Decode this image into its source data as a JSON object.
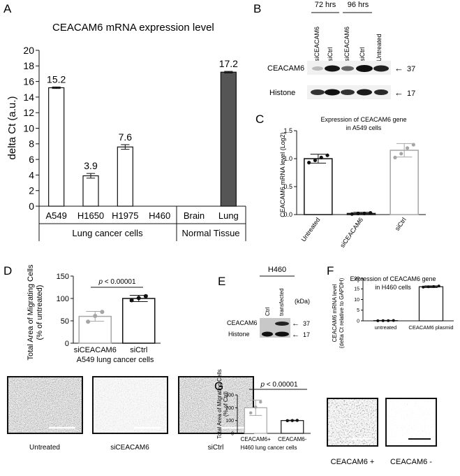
{
  "panels": {
    "A": {
      "letter": "A",
      "title": "CEACAM6 mRNA expression level",
      "ylabel": "delta Ct (a.u.)",
      "group_labels": [
        "Lung cancer cells",
        "Normal Tissue"
      ]
    },
    "B": {
      "letter": "B",
      "time_labels": [
        "72 hrs",
        "96 hrs"
      ],
      "lane_labels": [
        "siCEACAM6",
        "siCtrl",
        "siCEACAM6",
        "siCtrl",
        "Untreated"
      ],
      "row_labels": [
        "CEACAM6",
        "Histone"
      ],
      "kda_labels": [
        "37",
        "17"
      ]
    },
    "C": {
      "letter": "C",
      "title_line1": "Expression of CEACAM6 gene",
      "title_line2": "in A549 cells",
      "ylabel": "CEACAM6 mRNA level (Log2)"
    },
    "D": {
      "letter": "D",
      "ylabel_line1": "Total Area of Migrating Cells",
      "ylabel_line2": "(% of untreated)",
      "pvalue_p": "p",
      "pvalue_rest": " < 0.00001",
      "caption": "A549 lung cancer cells",
      "image_labels": [
        "Untreated",
        "siCEACAM6",
        "siCtrl"
      ]
    },
    "E": {
      "letter": "E",
      "cell_line": "H460",
      "lane_labels": [
        "Ctrl",
        "transfected"
      ],
      "kda_header": "(kDa)",
      "row_labels": [
        "CEACAM6",
        "Histone"
      ],
      "kda_labels": [
        "37",
        "17"
      ]
    },
    "F": {
      "letter": "F",
      "title_line1": "Expression of CEACAM6 gene",
      "title_line2": "in H460 cells",
      "ylabel_line1": "CEACAM6 mRNA level",
      "ylabel_line2": "(delta Ct relative to GAPDH)"
    },
    "G": {
      "letter": "G",
      "ylabel_line1": "Total Area of Migrating Cells",
      "ylabel_line2": "(% of Ctrl)",
      "pvalue_p": "p",
      "pvalue_rest": " < 0.00001",
      "caption": "H460 lung cancer cells",
      "image_labels": [
        "CEACAM6 +",
        "CEACAM6 -"
      ]
    }
  },
  "colors": {
    "lung_bar": "#555555",
    "grey_bar": "#a6a6a6",
    "black": "#111111"
  },
  "chart_data": [
    {
      "id": "A",
      "type": "bar",
      "categories": [
        "A549",
        "H1650",
        "H1975",
        "H460",
        "Brain",
        "Lung"
      ],
      "values": [
        15.2,
        3.9,
        7.6,
        0,
        0,
        17.2
      ],
      "errors": [
        0.1,
        0.3,
        0.3,
        0,
        0,
        0.1
      ],
      "data_labels": [
        "15.2",
        "3.9",
        "7.6",
        "",
        "",
        "17.2"
      ],
      "ylim": [
        0,
        20
      ],
      "yticks": [
        0,
        2,
        4,
        6,
        8,
        10,
        12,
        14,
        16,
        18,
        20
      ]
    },
    {
      "id": "C",
      "type": "bar",
      "categories": [
        "Untreated",
        "siCEACAM6",
        "siCtrl"
      ],
      "values": [
        1.0,
        0.02,
        1.15
      ],
      "errors": [
        0.08,
        0.02,
        0.12
      ],
      "points": [
        [
          0.93,
          0.97,
          1.02,
          1.06
        ],
        [
          0.01,
          0.02,
          0.02,
          0.03
        ],
        [
          1.02,
          1.09,
          1.19,
          1.25
        ]
      ],
      "ylim": [
        0,
        1.5
      ],
      "yticks": [
        0.0,
        0.5,
        1.0,
        1.5
      ]
    },
    {
      "id": "D",
      "type": "bar",
      "categories": [
        "siCEACAM6",
        "siCtrl"
      ],
      "values": [
        60,
        100
      ],
      "errors": [
        11,
        7
      ],
      "points": [
        [
          48,
          61,
          70
        ],
        [
          96,
          101,
          105
        ]
      ],
      "ylim": [
        0,
        150
      ],
      "yticks": [
        0,
        50,
        100,
        150
      ]
    },
    {
      "id": "F",
      "type": "bar",
      "categories": [
        "untreated",
        "CEACAM6 plasmid"
      ],
      "values": [
        0.1,
        16
      ],
      "errors": [
        0.1,
        0.4
      ],
      "points": [
        [
          0.05,
          0.1,
          0.1,
          0.15
        ],
        [
          15.8,
          16.0,
          16.1,
          16.3
        ]
      ],
      "ylim": [
        0,
        20
      ],
      "yticks": [
        0,
        5,
        10,
        15,
        20
      ]
    },
    {
      "id": "G",
      "type": "bar",
      "categories": [
        "CEACAM6+",
        "CEACAM6-"
      ],
      "values": [
        200,
        100
      ],
      "errors": [
        60,
        2
      ],
      "points": [
        [
          160,
          205,
          245
        ],
        [
          99,
          100,
          101
        ]
      ],
      "ylim": [
        0,
        300
      ],
      "yticks": [
        0,
        100,
        200,
        300
      ]
    }
  ]
}
